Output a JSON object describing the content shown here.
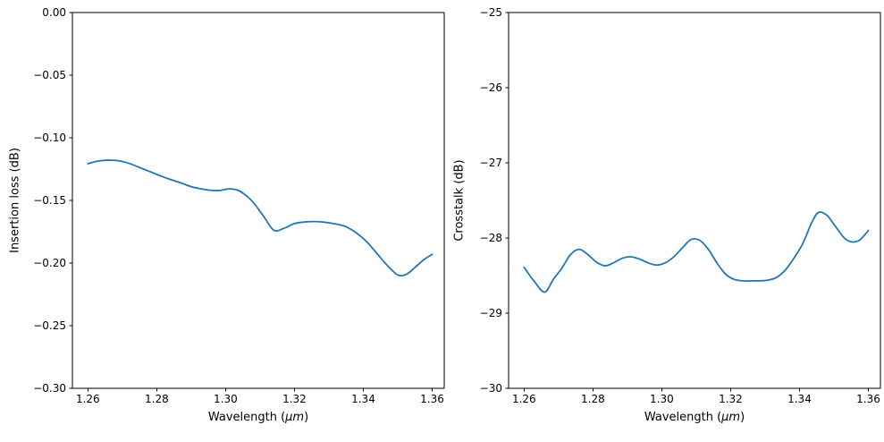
{
  "figure": {
    "background": "#ffffff",
    "accent_line_color": "#1f77b4"
  },
  "chart_data": [
    {
      "type": "line",
      "title": "",
      "xlabel": "Wavelength (μm)",
      "xlabel_parts": {
        "prefix": "Wavelength (",
        "italic": "μm",
        "suffix": ")"
      },
      "ylabel": "Insertion loss (dB)",
      "xlim": [
        1.2555,
        1.3635
      ],
      "ylim": [
        -0.3,
        0.0
      ],
      "grid": false,
      "legend_position": "none",
      "xticks": [
        1.26,
        1.28,
        1.3,
        1.32,
        1.34,
        1.36
      ],
      "xtick_labels": [
        "1.26",
        "1.28",
        "1.30",
        "1.32",
        "1.34",
        "1.36"
      ],
      "yticks": [
        0.0,
        -0.05,
        -0.1,
        -0.15,
        -0.2,
        -0.25,
        -0.3
      ],
      "ytick_labels": [
        "0.00",
        "−0.05",
        "−0.10",
        "−0.15",
        "−0.20",
        "−0.25",
        "−0.30"
      ],
      "series": [
        {
          "name": "insertion-loss",
          "color": "#1f77b4",
          "linewidth": 1.8,
          "points": [
            [
              1.26,
              -0.1207
            ],
            [
              1.263,
              -0.1186
            ],
            [
              1.266,
              -0.1179
            ],
            [
              1.269,
              -0.1184
            ],
            [
              1.272,
              -0.1205
            ],
            [
              1.275,
              -0.1237
            ],
            [
              1.278,
              -0.127
            ],
            [
              1.281,
              -0.1303
            ],
            [
              1.284,
              -0.1333
            ],
            [
              1.287,
              -0.136
            ],
            [
              1.29,
              -0.139
            ],
            [
              1.293,
              -0.1408
            ],
            [
              1.296,
              -0.142
            ],
            [
              1.2985,
              -0.142
            ],
            [
              1.301,
              -0.1408
            ],
            [
              1.3035,
              -0.1418
            ],
            [
              1.306,
              -0.1462
            ],
            [
              1.308,
              -0.1515
            ],
            [
              1.311,
              -0.1625
            ],
            [
              1.314,
              -0.1738
            ],
            [
              1.317,
              -0.1722
            ],
            [
              1.32,
              -0.1685
            ],
            [
              1.323,
              -0.1672
            ],
            [
              1.326,
              -0.1669
            ],
            [
              1.329,
              -0.1675
            ],
            [
              1.332,
              -0.1688
            ],
            [
              1.335,
              -0.171
            ],
            [
              1.338,
              -0.176
            ],
            [
              1.341,
              -0.183
            ],
            [
              1.344,
              -0.1925
            ],
            [
              1.347,
              -0.202
            ],
            [
              1.35,
              -0.2095
            ],
            [
              1.3525,
              -0.209
            ],
            [
              1.355,
              -0.2035
            ],
            [
              1.3575,
              -0.1975
            ],
            [
              1.36,
              -0.193
            ]
          ]
        }
      ]
    },
    {
      "type": "line",
      "title": "",
      "xlabel": "Wavelength (μm)",
      "xlabel_parts": {
        "prefix": "Wavelength (",
        "italic": "μm",
        "suffix": ")"
      },
      "ylabel": "Crosstalk (dB)",
      "xlim": [
        1.2555,
        1.3635
      ],
      "ylim": [
        -30,
        -25
      ],
      "grid": false,
      "legend_position": "none",
      "xticks": [
        1.26,
        1.28,
        1.3,
        1.32,
        1.34,
        1.36
      ],
      "xtick_labels": [
        "1.26",
        "1.28",
        "1.30",
        "1.32",
        "1.34",
        "1.36"
      ],
      "yticks": [
        -25,
        -26,
        -27,
        -28,
        -29,
        -30
      ],
      "ytick_labels": [
        "−25",
        "−26",
        "−27",
        "−28",
        "−29",
        "−30"
      ],
      "series": [
        {
          "name": "crosstalk",
          "color": "#1f77b4",
          "linewidth": 1.8,
          "points": [
            [
              1.26,
              -28.39
            ],
            [
              1.263,
              -28.58
            ],
            [
              1.266,
              -28.72
            ],
            [
              1.2685,
              -28.55
            ],
            [
              1.271,
              -28.4
            ],
            [
              1.2735,
              -28.22
            ],
            [
              1.276,
              -28.15
            ],
            [
              1.2785,
              -28.22
            ],
            [
              1.281,
              -28.32
            ],
            [
              1.2835,
              -28.37
            ],
            [
              1.286,
              -28.33
            ],
            [
              1.2885,
              -28.27
            ],
            [
              1.291,
              -28.25
            ],
            [
              1.2935,
              -28.28
            ],
            [
              1.296,
              -28.33
            ],
            [
              1.2985,
              -28.36
            ],
            [
              1.301,
              -28.33
            ],
            [
              1.3035,
              -28.25
            ],
            [
              1.306,
              -28.13
            ],
            [
              1.3085,
              -28.02
            ],
            [
              1.311,
              -28.03
            ],
            [
              1.3135,
              -28.15
            ],
            [
              1.316,
              -28.33
            ],
            [
              1.3185,
              -28.48
            ],
            [
              1.321,
              -28.55
            ],
            [
              1.3235,
              -28.57
            ],
            [
              1.326,
              -28.57
            ],
            [
              1.3285,
              -28.57
            ],
            [
              1.331,
              -28.56
            ],
            [
              1.3335,
              -28.52
            ],
            [
              1.336,
              -28.42
            ],
            [
              1.3385,
              -28.26
            ],
            [
              1.341,
              -28.07
            ],
            [
              1.3435,
              -27.8
            ],
            [
              1.3455,
              -27.66
            ],
            [
              1.348,
              -27.7
            ],
            [
              1.3505,
              -27.85
            ],
            [
              1.353,
              -28.0
            ],
            [
              1.355,
              -28.05
            ],
            [
              1.357,
              -28.04
            ],
            [
              1.3585,
              -27.98
            ],
            [
              1.36,
              -27.9
            ]
          ]
        }
      ]
    }
  ]
}
